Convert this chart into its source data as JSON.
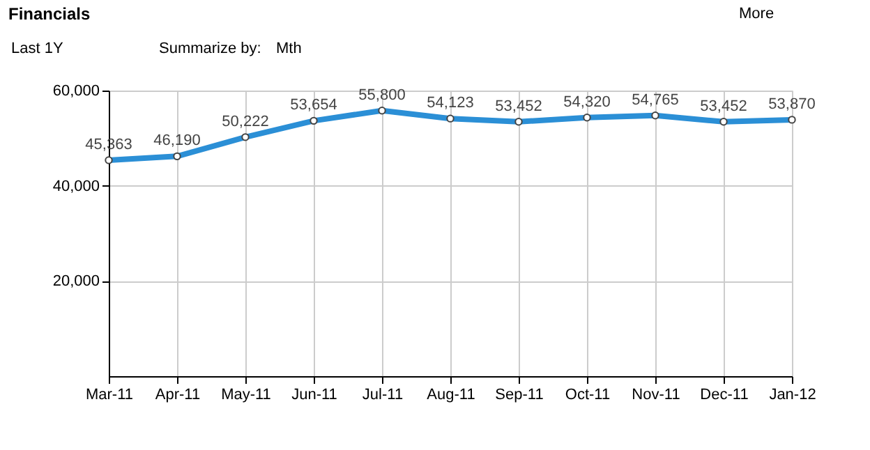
{
  "chart_data": {
    "type": "line",
    "title": "Financials",
    "annotations": [
      "Last 1Y",
      "Summarize by:",
      "Mth",
      "More"
    ],
    "categories": [
      "Mar-11",
      "Apr-11",
      "May-11",
      "Jun-11",
      "Jul-11",
      "Aug-11",
      "Sep-11",
      "Oct-11",
      "Nov-11",
      "Dec-11",
      "Jan-12"
    ],
    "series": [
      {
        "color": "#2b8fd6",
        "values": [
          45363,
          46190,
          50222,
          53654,
          55800,
          54123,
          53452,
          54320,
          54765,
          53452,
          53870
        ],
        "value_labels": [
          "45,363",
          "46,190",
          "50,222",
          "53,654",
          "55,800",
          "54,123",
          "53,452",
          "54,320",
          "54,765",
          "53,452",
          "53,870"
        ]
      }
    ],
    "ylim": [
      0,
      60000
    ],
    "yticks": [
      {
        "value": 20000,
        "label": "20,000"
      },
      {
        "value": 40000,
        "label": "40,000"
      },
      {
        "value": 60000,
        "label": "60,000"
      }
    ],
    "grid": true,
    "marker": "circle",
    "line_style": "solid"
  }
}
